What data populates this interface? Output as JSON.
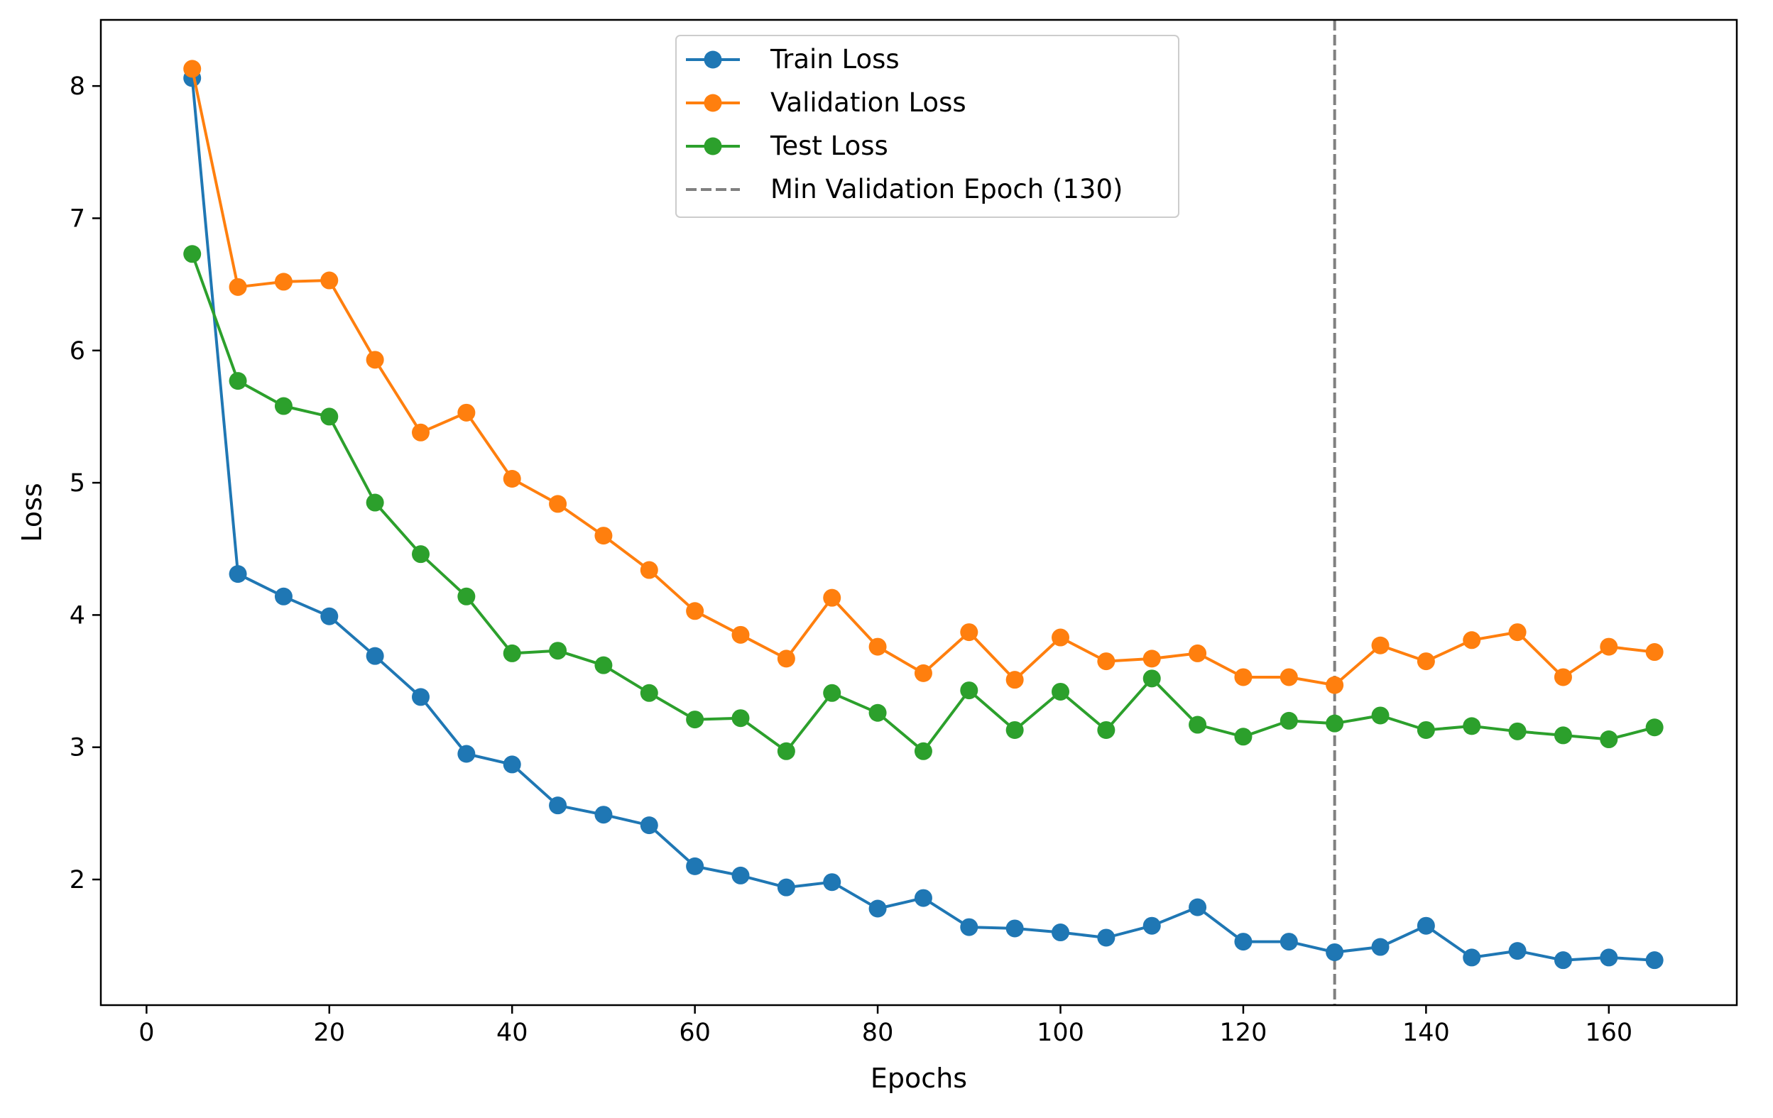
{
  "chart_data": {
    "type": "line",
    "title": "",
    "xlabel": "Epochs",
    "ylabel": "Loss",
    "xlim": [
      -5,
      174
    ],
    "ylim": [
      1.05,
      8.5
    ],
    "x_ticks": [
      0,
      20,
      40,
      60,
      80,
      100,
      120,
      140,
      160
    ],
    "y_ticks": [
      2,
      3,
      4,
      5,
      6,
      7,
      8
    ],
    "grid": false,
    "legend_position": "top-center",
    "x": [
      5,
      10,
      15,
      20,
      25,
      30,
      35,
      40,
      45,
      50,
      55,
      60,
      65,
      70,
      75,
      80,
      85,
      90,
      95,
      100,
      105,
      110,
      115,
      120,
      125,
      130,
      135,
      140,
      145,
      150,
      155,
      160,
      165
    ],
    "series": [
      {
        "name": "Train Loss",
        "color": "#1f77b4",
        "values": [
          8.06,
          4.31,
          4.14,
          3.99,
          3.69,
          3.38,
          2.95,
          2.87,
          2.56,
          2.49,
          2.41,
          2.1,
          2.03,
          1.94,
          1.98,
          1.78,
          1.86,
          1.64,
          1.63,
          1.6,
          1.56,
          1.65,
          1.79,
          1.53,
          1.53,
          1.45,
          1.49,
          1.65,
          1.41,
          1.46,
          1.39,
          1.41,
          1.39
        ]
      },
      {
        "name": "Validation Loss",
        "color": "#ff7f0e",
        "values": [
          8.13,
          6.48,
          6.52,
          6.53,
          5.93,
          5.38,
          5.53,
          5.03,
          4.84,
          4.6,
          4.34,
          4.03,
          3.85,
          3.67,
          4.13,
          3.76,
          3.56,
          3.87,
          3.51,
          3.83,
          3.65,
          3.67,
          3.71,
          3.53,
          3.53,
          3.47,
          3.77,
          3.65,
          3.81,
          3.87,
          3.53,
          3.76,
          3.72
        ]
      },
      {
        "name": "Test Loss",
        "color": "#2ca02c",
        "values": [
          6.73,
          5.77,
          5.58,
          5.5,
          4.85,
          4.46,
          4.14,
          3.71,
          3.73,
          3.62,
          3.41,
          3.21,
          3.22,
          2.97,
          3.41,
          3.26,
          2.97,
          3.43,
          3.13,
          3.42,
          3.13,
          3.52,
          3.17,
          3.08,
          3.2,
          3.18,
          3.24,
          3.13,
          3.16,
          3.12,
          3.09,
          3.06,
          3.15
        ]
      }
    ],
    "reference_line": {
      "name": "Min Validation Epoch (130)",
      "x": 130,
      "color": "#808080",
      "style": "dashed"
    }
  }
}
